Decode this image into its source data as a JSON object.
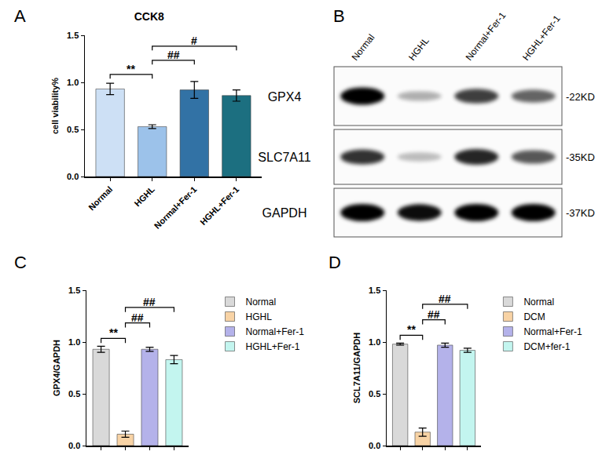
{
  "chart_data": [
    {
      "panel": "A",
      "type": "bar",
      "title": "CCK8",
      "y_label": "cell viability%",
      "categories": [
        "Normal",
        "HGHL",
        "Normal+Fer-1",
        "HGHL+Fer-1"
      ],
      "values": [
        0.93,
        0.53,
        0.92,
        0.86
      ],
      "errors": [
        0.06,
        0.02,
        0.09,
        0.06
      ],
      "colors": [
        "#cde0f5",
        "#9cc2ea",
        "#3272a5",
        "#1c6f80"
      ],
      "ylim": [
        0,
        1.5
      ],
      "yticks": [
        {
          "value": 0,
          "label": "0.0"
        },
        {
          "value": 0.5,
          "label": "0.5"
        },
        {
          "value": 1,
          "label": "1.0"
        },
        {
          "value": 1.5,
          "label": "1.5"
        }
      ],
      "comparisons": [
        {
          "from": "Normal",
          "to": "HGHL",
          "label": "**"
        },
        {
          "from": "HGHL",
          "to": "Normal+Fer-1",
          "label": "##"
        },
        {
          "from": "HGHL",
          "to": "HGHL+Fer-1",
          "label": "#"
        }
      ]
    },
    {
      "panel": "C",
      "type": "bar",
      "y_label": "GPX4/GAPDH",
      "categories": [
        "Normal",
        "HGHL",
        "Normal+Fer-1",
        "HGHL+Fer-1"
      ],
      "values": [
        0.93,
        0.11,
        0.93,
        0.83
      ],
      "errors": [
        0.03,
        0.03,
        0.02,
        0.04
      ],
      "colors": [
        "#d9d9d9",
        "#f8d3a5",
        "#b4b2ea",
        "#c3f5ef"
      ],
      "ylim": [
        0,
        1.5
      ],
      "yticks": [
        {
          "value": 0,
          "label": "0.0"
        },
        {
          "value": 0.5,
          "label": "0.5"
        },
        {
          "value": 1,
          "label": "1.0"
        },
        {
          "value": 1.5,
          "label": "1.5"
        }
      ],
      "tick_labels": "y",
      "legend": "right",
      "comparisons": [
        {
          "from": "Normal",
          "to": "HGHL",
          "label": "**"
        },
        {
          "from": "HGHL",
          "to": "Normal+Fer-1",
          "label": "##"
        },
        {
          "from": "HGHL",
          "to": "HGHL+Fer-1",
          "label": "##"
        }
      ]
    },
    {
      "panel": "D",
      "type": "bar",
      "y_label": "SCL7A11/GAPDH",
      "categories": [
        "Normal",
        "DCM",
        "Normal+Fer-1",
        "DCM+fer-1"
      ],
      "values": [
        0.98,
        0.13,
        0.97,
        0.92
      ],
      "errors": [
        0.01,
        0.04,
        0.02,
        0.02
      ],
      "colors": [
        "#d9d9d9",
        "#f8d3a5",
        "#b4b2ea",
        "#c3f5ef"
      ],
      "ylim": [
        0,
        1.5
      ],
      "yticks": [
        {
          "value": 0,
          "label": "0.0"
        },
        {
          "value": 0.5,
          "label": "0.5"
        },
        {
          "value": 1,
          "label": "1.0"
        },
        {
          "value": 1.5,
          "label": "1.5"
        }
      ],
      "tick_labels": "y",
      "legend": "right",
      "comparisons": [
        {
          "from": "Normal",
          "to": "DCM",
          "label": "**"
        },
        {
          "from": "DCM",
          "to": "Normal+Fer-1",
          "label": "##"
        },
        {
          "from": "DCM",
          "to": "DCM+fer-1",
          "label": "##"
        }
      ]
    }
  ],
  "western_blot": {
    "panel": "B",
    "lanes": [
      "Normal",
      "HGHL",
      "Normal+Fer-1",
      "HGHL+Fer-1"
    ],
    "rows": [
      {
        "protein": "GPX4",
        "size_label": "-22KD",
        "intensity": [
          1.0,
          0.3,
          0.75,
          0.6
        ]
      },
      {
        "protein": "SLC7A11",
        "size_label": "-35KD",
        "intensity": [
          0.8,
          0.25,
          0.85,
          0.65
        ]
      },
      {
        "protein": "GAPDH",
        "size_label": "-37KD",
        "intensity": [
          1.0,
          0.95,
          1.0,
          1.0
        ]
      }
    ]
  }
}
